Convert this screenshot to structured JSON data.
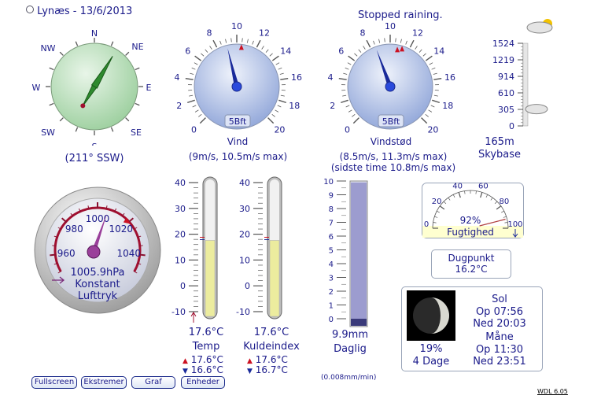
{
  "header": {
    "title": "Lynæs - 13/6/2013",
    "status": "Stopped raining."
  },
  "compass": {
    "N": "N",
    "NE": "NE",
    "E": "E",
    "SE": "SE",
    "S": "S",
    "SW": "SW",
    "W": "W",
    "NW": "NW",
    "direction": "(211° SSW)",
    "bearing_deg": 211
  },
  "wind": {
    "ticks": [
      "0",
      "2",
      "4",
      "6",
      "8",
      "10",
      "12",
      "14",
      "16",
      "18",
      "20"
    ],
    "bft": "5Bft",
    "label": "Vind",
    "values": "(9m/s, 10.5m/s max)",
    "speed": 9,
    "max": 10.5
  },
  "gust": {
    "ticks": [
      "0",
      "2",
      "4",
      "6",
      "8",
      "10",
      "12",
      "14",
      "16",
      "18",
      "20"
    ],
    "bft": "5Bft",
    "label": "Vindstød",
    "values": "(8.5m/s, 11.3m/s max)",
    "sub": "(sidste time 10.8m/s max)",
    "speed": 8.5,
    "max": 11.3
  },
  "cloudbase": {
    "ticks": [
      "1524",
      "1219",
      "914",
      "610",
      "305",
      "0"
    ],
    "value": "165m",
    "label": "Skybase",
    "level_m": 165
  },
  "barometer": {
    "ticks": [
      "960",
      "980",
      "1000",
      "1020",
      "1040"
    ],
    "value": "1005.9hPa",
    "trend": "Konstant",
    "label": "Lufttryk",
    "pressure": 1005.9
  },
  "temp": {
    "ticks": [
      "40",
      "30",
      "20",
      "10",
      "0",
      "-10"
    ],
    "value": "17.6°C",
    "label": "Temp",
    "high": "17.6°C",
    "low": "16.6°C",
    "level": 17.6
  },
  "windchill": {
    "ticks": [
      "40",
      "30",
      "20",
      "10",
      "0",
      "-10"
    ],
    "value": "17.6°C",
    "label": "Kuldeindex",
    "high": "17.6°C",
    "low": "16.7°C",
    "level": 17.6
  },
  "rain": {
    "ticks": [
      "10",
      "9",
      "8",
      "7",
      "6",
      "5",
      "4",
      "3",
      "2",
      "1",
      "0"
    ],
    "value": "9.9mm",
    "label": "Daglig",
    "rate": "(0.008mm/min)",
    "amount": 9.9
  },
  "humidity": {
    "ticks": [
      "0",
      "20",
      "40",
      "60",
      "80",
      "100"
    ],
    "value": "92%",
    "label": "Fugtighed",
    "level": 92
  },
  "dewpoint": {
    "label": "Dugpunkt",
    "value": "16.2°C"
  },
  "astro": {
    "sun_label": "Sol",
    "sunrise": "Op 07:56",
    "sunset": "Ned 20:03",
    "moon_label": "Måne",
    "moonrise": "Op 11:30",
    "moonset": "Ned 23:51",
    "moon_pct": "19%",
    "moon_age": "4 Dage"
  },
  "buttons": {
    "fullscreen": "Fullscreen",
    "extremes": "Ekstremer",
    "graph": "Graf",
    "units": "Enheder"
  },
  "version": "WDL 6.05",
  "colors": {
    "text": "#1a1a8a",
    "needle": "#1a2a9a",
    "red": "#cc1122",
    "dial": "#b8c8ea",
    "compass": "#bfe0c0"
  }
}
